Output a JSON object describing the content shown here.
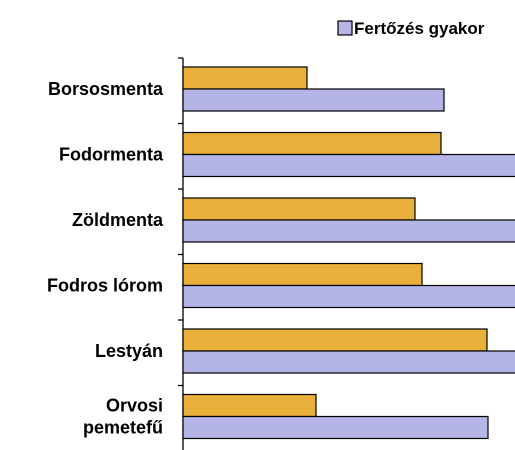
{
  "chart_data": {
    "type": "bar",
    "orientation": "horizontal",
    "categories": [
      [
        "Borsosmenta"
      ],
      [
        "Fodormenta"
      ],
      [
        "Zöldmenta"
      ],
      [
        "Fodros lórom"
      ],
      [
        "Lestyán"
      ],
      [
        "Orvosi",
        "pemetefű"
      ]
    ],
    "series": [
      {
        "values": [
          124,
          258,
          232,
          239,
          304,
          133
        ],
        "color": "#e8b03a"
      },
      {
        "name": "Fertőzés gyakor",
        "values": [
          261,
          340,
          340,
          340,
          340,
          305
        ],
        "color": "#b4b4e6"
      }
    ],
    "legend": {
      "position": "top-right"
    },
    "grid": false
  }
}
